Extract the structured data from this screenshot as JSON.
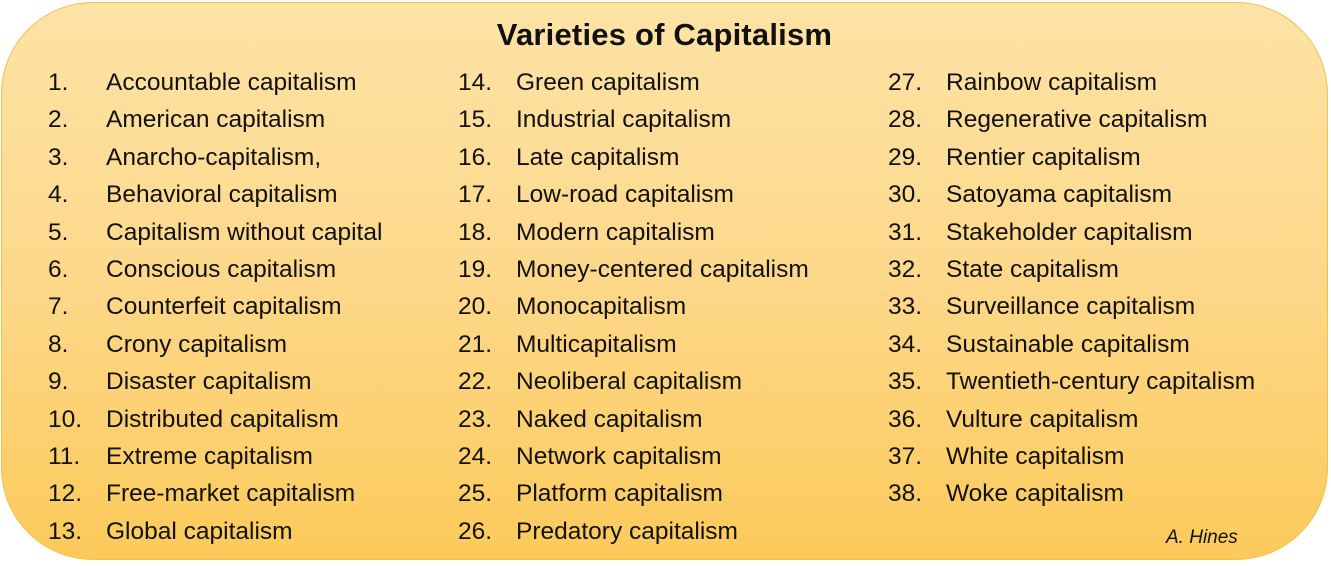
{
  "title": "Varieties of Capitalism",
  "author": "A. Hines",
  "columns": [
    [
      {
        "num": "1.",
        "text": "Accountable capitalism"
      },
      {
        "num": "2.",
        "text": "American capitalism"
      },
      {
        "num": "3.",
        "text": "Anarcho-capitalism,"
      },
      {
        "num": "4.",
        "text": "Behavioral capitalism"
      },
      {
        "num": "5.",
        "text": "Capitalism without capital"
      },
      {
        "num": "6.",
        "text": "Conscious capitalism"
      },
      {
        "num": "7.",
        "text": "Counterfeit capitalism"
      },
      {
        "num": "8.",
        "text": "Crony capitalism"
      },
      {
        "num": "9.",
        "text": "Disaster capitalism"
      },
      {
        "num": "10.",
        "text": "Distributed capitalism"
      },
      {
        "num": "11.",
        "text": "Extreme capitalism"
      },
      {
        "num": "12.",
        "text": "Free-market capitalism"
      },
      {
        "num": "13.",
        "text": "Global capitalism"
      }
    ],
    [
      {
        "num": "14.",
        "text": "Green capitalism"
      },
      {
        "num": "15.",
        "text": "Industrial capitalism"
      },
      {
        "num": "16.",
        "text": "Late capitalism"
      },
      {
        "num": "17.",
        "text": "Low-road capitalism"
      },
      {
        "num": "18.",
        "text": "Modern capitalism"
      },
      {
        "num": "19.",
        "text": "Money-centered capitalism"
      },
      {
        "num": "20.",
        "text": "Monocapitalism"
      },
      {
        "num": "21.",
        "text": "Multicapitalism"
      },
      {
        "num": "22.",
        "text": "Neoliberal capitalism"
      },
      {
        "num": "23.",
        "text": "Naked capitalism"
      },
      {
        "num": "24.",
        "text": "Network capitalism"
      },
      {
        "num": "25.",
        "text": "Platform capitalism"
      },
      {
        "num": "26.",
        "text": "Predatory capitalism"
      }
    ],
    [
      {
        "num": "27.",
        "text": "Rainbow capitalism"
      },
      {
        "num": "28.",
        "text": "Regenerative capitalism"
      },
      {
        "num": "29.",
        "text": "Rentier capitalism"
      },
      {
        "num": "30.",
        "text": "Satoyama capitalism"
      },
      {
        "num": "31.",
        "text": "Stakeholder capitalism"
      },
      {
        "num": "32.",
        "text": "State capitalism"
      },
      {
        "num": "33.",
        "text": "Surveillance capitalism"
      },
      {
        "num": "34.",
        "text": "Sustainable capitalism"
      },
      {
        "num": "35.",
        "text": "Twentieth-century capitalism"
      },
      {
        "num": "36.",
        "text": "Vulture capitalism"
      },
      {
        "num": "37.",
        "text": "White capitalism"
      },
      {
        "num": "38.",
        "text": "Woke capitalism"
      }
    ]
  ]
}
